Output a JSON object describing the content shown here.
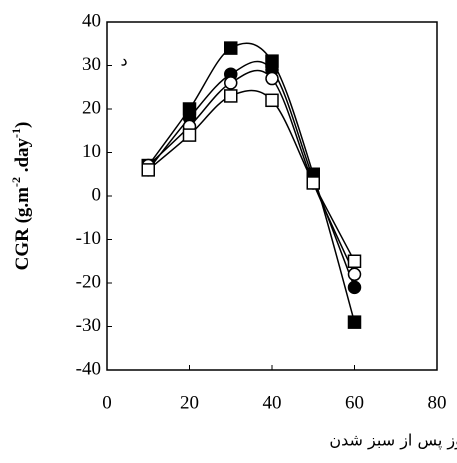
{
  "chart_data": {
    "type": "line",
    "annotation": "د",
    "ylabel_parts": [
      "CGR (g.m",
      "-2",
      " .day",
      "-1",
      ")"
    ],
    "xlabel": "روز پس از سبز شدن",
    "x": [
      10,
      20,
      30,
      40,
      50,
      60
    ],
    "series": [
      {
        "color": "#000000",
        "marker": "square",
        "filled": true,
        "values": [
          7,
          20,
          34,
          31,
          5,
          -29
        ]
      },
      {
        "color": "#000000",
        "marker": "circle",
        "filled": true,
        "values": [
          6,
          18,
          28,
          29,
          4,
          -21
        ]
      },
      {
        "color": "#000000",
        "marker": "circle",
        "filled": false,
        "values": [
          7,
          16,
          26,
          27,
          3,
          -18
        ]
      },
      {
        "color": "#000000",
        "marker": "square",
        "filled": false,
        "values": [
          6,
          14,
          23,
          22,
          3,
          -15
        ]
      }
    ],
    "xlim": [
      0,
      80
    ],
    "xticks": [
      0,
      20,
      40,
      60,
      80
    ],
    "ylim": [
      -40,
      40
    ],
    "yticks": [
      -40,
      -30,
      -20,
      -10,
      0,
      10,
      20,
      30,
      40
    ],
    "smooth": true,
    "grid": false
  }
}
